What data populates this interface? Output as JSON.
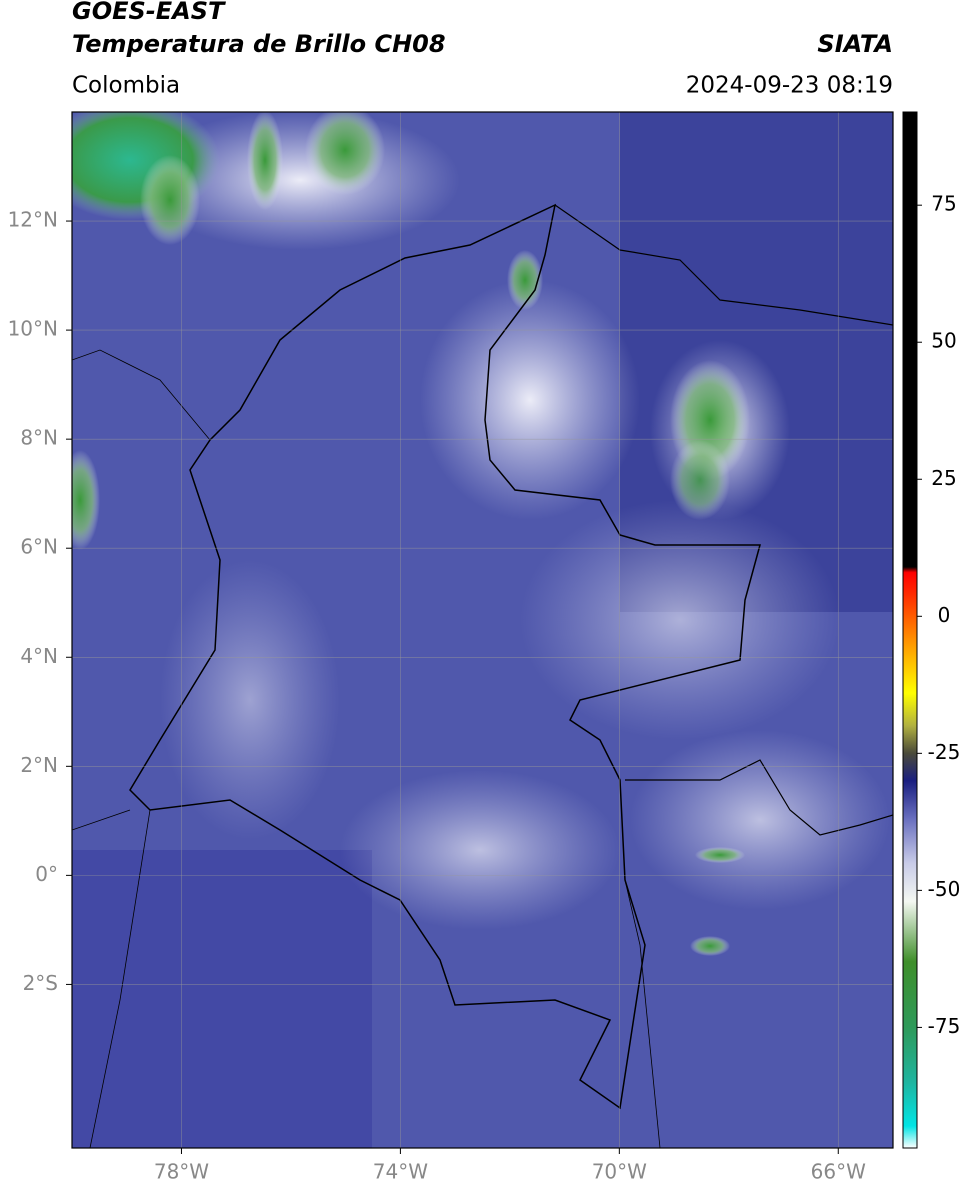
{
  "header": {
    "title": "GOES-EAST",
    "subtitle": "Temperatura de Brillo CH08",
    "source": "SIATA",
    "region": "Colombia",
    "timestamp": "2024-09-23 08:19"
  },
  "map": {
    "xlim": [
      -80,
      -65
    ],
    "ylim": [
      -5,
      14
    ],
    "xticks": [
      {
        "value": -78,
        "label": "78°W"
      },
      {
        "value": -74,
        "label": "74°W"
      },
      {
        "value": -70,
        "label": "70°W"
      },
      {
        "value": -66,
        "label": "66°W"
      }
    ],
    "yticks": [
      {
        "value": 12,
        "label": "12°N"
      },
      {
        "value": 10,
        "label": "10°N"
      },
      {
        "value": 8,
        "label": "8°N"
      },
      {
        "value": 6,
        "label": "6°N"
      },
      {
        "value": 4,
        "label": "4°N"
      },
      {
        "value": 2,
        "label": "2°N"
      },
      {
        "value": 0,
        "label": "0°"
      },
      {
        "value": -2,
        "label": "2°S"
      }
    ],
    "grid": true
  },
  "colorbar": {
    "clim": [
      -97,
      92
    ],
    "ticks": [
      75,
      50,
      25,
      0,
      -25,
      -50,
      -75
    ],
    "stops": [
      {
        "value": -97,
        "color": "#ffffff"
      },
      {
        "value": -93,
        "color": "#00e5e5"
      },
      {
        "value": -85,
        "color": "#1fb5a0"
      },
      {
        "value": -75,
        "color": "#2e9a5a"
      },
      {
        "value": -63,
        "color": "#3f8f2a"
      },
      {
        "value": -52,
        "color": "#f4f8f2"
      },
      {
        "value": -45,
        "color": "#c8cbe8"
      },
      {
        "value": -37,
        "color": "#6a70c0"
      },
      {
        "value": -30,
        "color": "#1a1f80"
      },
      {
        "value": -25,
        "color": "#4a4a3a"
      },
      {
        "value": -20,
        "color": "#b0b040"
      },
      {
        "value": -14,
        "color": "#ffff00"
      },
      {
        "value": -5,
        "color": "#ff9900"
      },
      {
        "value": 5,
        "color": "#ff2000"
      },
      {
        "value": 8,
        "color": "#ff0000"
      },
      {
        "value": 9,
        "color": "#000000"
      },
      {
        "value": 92,
        "color": "#000000"
      }
    ]
  }
}
